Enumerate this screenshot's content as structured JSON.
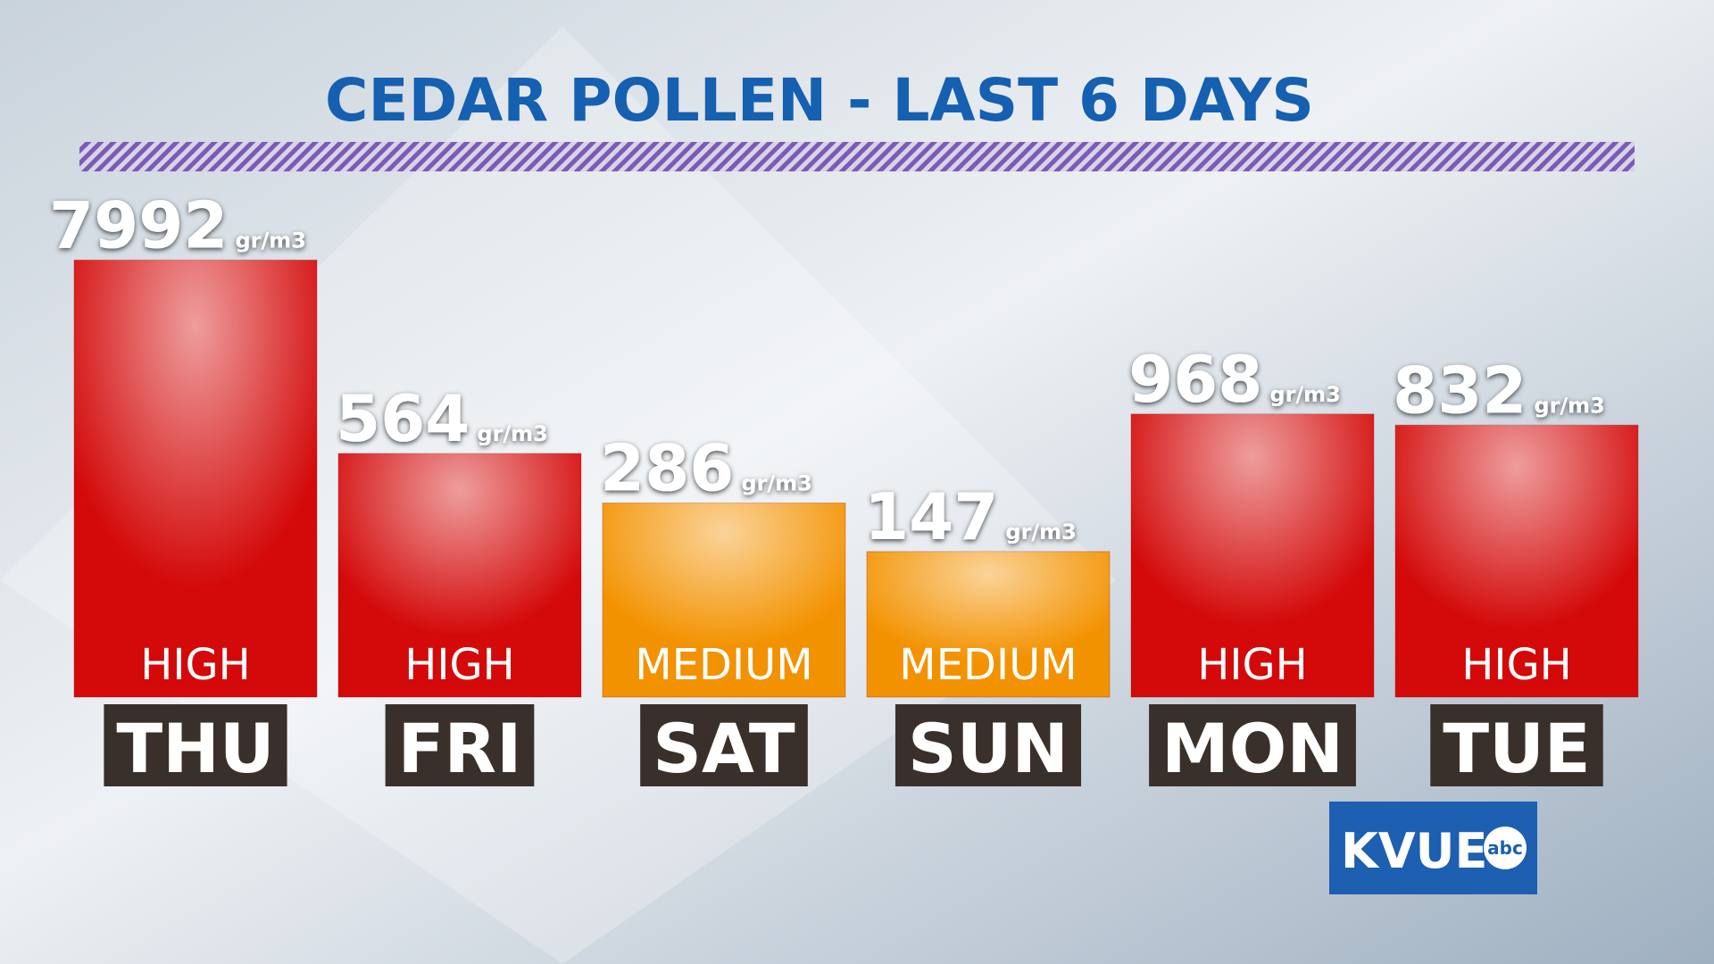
{
  "chart_data": {
    "type": "bar",
    "title": "CEDAR POLLEN - LAST 6 DAYS",
    "categories": [
      "THU",
      "FRI",
      "SAT",
      "SUN",
      "MON",
      "TUE"
    ],
    "values": [
      7992,
      564,
      286,
      147,
      968,
      832
    ],
    "unit": "gr/m3",
    "levels": [
      "HIGH",
      "HIGH",
      "MEDIUM",
      "MEDIUM",
      "HIGH",
      "HIGH"
    ],
    "colors": [
      "#d40a0a",
      "#d40a0a",
      "#f39200",
      "#f39200",
      "#d40a0a",
      "#d40a0a"
    ],
    "ylim": [
      20,
      10000
    ],
    "log_scale": true
  },
  "logo": {
    "text": "KVUE",
    "badge": "abc"
  }
}
